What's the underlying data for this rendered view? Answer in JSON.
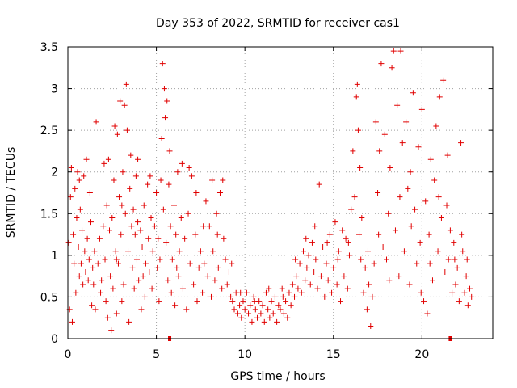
{
  "chart_data": {
    "type": "scatter",
    "title": "Day 353 of 2022, SRMTID for receiver cas1",
    "xlabel": "GPS time / hours",
    "ylabel": "SRMTID / TECUs",
    "xlim": [
      0,
      24
    ],
    "ylim": [
      0,
      3.5
    ],
    "xticks": [
      0,
      5,
      10,
      15,
      20
    ],
    "xtick_labels": [
      "0",
      "5",
      "10",
      "15",
      "20"
    ],
    "yticks": [
      0,
      0.5,
      1,
      1.5,
      2,
      2.5,
      3,
      3.5
    ],
    "ytick_labels": [
      "0",
      "0.5",
      "1",
      "1.5",
      "2",
      "2.5",
      "3",
      "3.5"
    ],
    "grid": true,
    "marker": "+",
    "color": "#e00000",
    "axis_markers_x": [
      5.75,
      21.6
    ],
    "series": [
      {
        "name": "cas1",
        "points": [
          [
            0.05,
            1.15
          ],
          [
            0.1,
            0.35
          ],
          [
            0.15,
            1.7
          ],
          [
            0.2,
            2.05
          ],
          [
            0.25,
            0.2
          ],
          [
            0.3,
            1.25
          ],
          [
            0.35,
            0.9
          ],
          [
            0.4,
            1.8
          ],
          [
            0.45,
            0.55
          ],
          [
            0.5,
            1.45
          ],
          [
            0.55,
            2.0
          ],
          [
            0.6,
            1.1
          ],
          [
            0.65,
            0.75
          ],
          [
            0.7,
            1.55
          ],
          [
            0.75,
            0.9
          ],
          [
            0.8,
            1.3
          ],
          [
            0.85,
            0.65
          ],
          [
            0.9,
            1.95
          ],
          [
            0.95,
            1.05
          ],
          [
            1.0,
            0.8
          ],
          [
            1.05,
            2.15
          ],
          [
            1.1,
            1.2
          ],
          [
            1.15,
            0.7
          ],
          [
            1.2,
            0.95
          ],
          [
            1.3,
            1.4
          ],
          [
            1.35,
            0.4
          ],
          [
            1.4,
            0.85
          ],
          [
            1.5,
            1.05
          ],
          [
            1.55,
            0.35
          ],
          [
            1.6,
            2.6
          ],
          [
            1.7,
            0.9
          ],
          [
            1.8,
            1.2
          ],
          [
            1.85,
            0.55
          ],
          [
            1.9,
            0.7
          ],
          [
            2.0,
            1.35
          ],
          [
            2.05,
            2.1
          ],
          [
            2.1,
            0.95
          ],
          [
            2.2,
            1.6
          ],
          [
            2.25,
            0.25
          ],
          [
            2.3,
            2.15
          ],
          [
            2.35,
            1.3
          ],
          [
            2.4,
            0.75
          ],
          [
            2.45,
            0.1
          ],
          [
            2.5,
            1.45
          ],
          [
            2.55,
            0.6
          ],
          [
            2.6,
            1.9
          ],
          [
            2.65,
            2.55
          ],
          [
            2.7,
            1.05
          ],
          [
            2.75,
            0.3
          ],
          [
            2.8,
            2.45
          ],
          [
            2.85,
            0.9
          ],
          [
            2.9,
            1.7
          ],
          [
            2.95,
            2.85
          ],
          [
            3.0,
            1.25
          ],
          [
            3.05,
            0.45
          ],
          [
            3.1,
            2.0
          ],
          [
            3.15,
            0.65
          ],
          [
            3.2,
            2.8
          ],
          [
            3.25,
            1.5
          ],
          [
            3.3,
            3.05
          ],
          [
            3.35,
            2.5
          ],
          [
            3.4,
            1.05
          ],
          [
            3.45,
            0.2
          ],
          [
            3.5,
            1.8
          ],
          [
            3.55,
            2.2
          ],
          [
            3.6,
            1.35
          ],
          [
            3.65,
            0.85
          ],
          [
            3.7,
            1.55
          ],
          [
            3.75,
            0.6
          ],
          [
            3.8,
            1.25
          ],
          [
            3.85,
            1.95
          ],
          [
            3.9,
            0.95
          ],
          [
            3.95,
            1.4
          ],
          [
            4.0,
            0.7
          ],
          [
            4.1,
            1.3
          ],
          [
            4.15,
            0.35
          ],
          [
            4.2,
            1.1
          ],
          [
            4.3,
            1.6
          ],
          [
            4.35,
            0.5
          ],
          [
            4.4,
            0.9
          ],
          [
            4.5,
            1.85
          ],
          [
            4.55,
            1.2
          ],
          [
            4.6,
            0.8
          ],
          [
            4.7,
            1.45
          ],
          [
            4.75,
            0.6
          ],
          [
            4.8,
            1.05
          ],
          [
            4.9,
            1.35
          ],
          [
            5.0,
            1.75
          ],
          [
            5.05,
            0.85
          ],
          [
            5.1,
            1.2
          ],
          [
            5.15,
            0.45
          ],
          [
            5.2,
            0.95
          ],
          [
            5.3,
            2.4
          ],
          [
            5.35,
            3.3
          ],
          [
            5.4,
            1.55
          ],
          [
            5.45,
            3.0
          ],
          [
            5.5,
            2.65
          ],
          [
            5.55,
            1.15
          ],
          [
            5.6,
            2.85
          ],
          [
            5.65,
            0.7
          ],
          [
            5.7,
            1.85
          ],
          [
            5.75,
            2.25
          ],
          [
            5.8,
            1.35
          ],
          [
            5.85,
            0.55
          ],
          [
            5.9,
            0.95
          ],
          [
            6.0,
            1.6
          ],
          [
            6.05,
            0.4
          ],
          [
            6.1,
            1.25
          ],
          [
            6.2,
            2.0
          ],
          [
            6.25,
            0.75
          ],
          [
            6.3,
            1.05
          ],
          [
            6.4,
            1.45
          ],
          [
            6.45,
            2.1
          ],
          [
            6.5,
            0.6
          ],
          [
            6.6,
            1.2
          ],
          [
            6.7,
            0.35
          ],
          [
            6.8,
            1.5
          ],
          [
            6.9,
            0.9
          ],
          [
            7.0,
            1.95
          ],
          [
            7.1,
            0.65
          ],
          [
            7.2,
            1.25
          ],
          [
            7.3,
            0.45
          ],
          [
            7.4,
            0.85
          ],
          [
            7.5,
            1.05
          ],
          [
            7.6,
            0.55
          ],
          [
            7.7,
            0.9
          ],
          [
            7.8,
            1.65
          ],
          [
            7.9,
            0.75
          ],
          [
            8.0,
            1.35
          ],
          [
            8.1,
            0.5
          ],
          [
            8.2,
            1.05
          ],
          [
            8.3,
            0.7
          ],
          [
            8.4,
            1.5
          ],
          [
            8.5,
            0.85
          ],
          [
            8.6,
            1.75
          ],
          [
            8.7,
            0.6
          ],
          [
            8.75,
            1.9
          ],
          [
            8.8,
            1.2
          ],
          [
            8.9,
            0.95
          ],
          [
            9.0,
            0.65
          ],
          [
            9.1,
            0.8
          ],
          [
            9.2,
            0.5
          ],
          [
            9.3,
            0.45
          ],
          [
            9.4,
            0.35
          ],
          [
            9.5,
            0.55
          ],
          [
            9.6,
            0.3
          ],
          [
            9.7,
            0.4
          ],
          [
            9.8,
            0.25
          ],
          [
            9.9,
            0.45
          ],
          [
            10.0,
            0.35
          ],
          [
            10.1,
            0.55
          ],
          [
            10.2,
            0.3
          ],
          [
            10.3,
            0.4
          ],
          [
            10.4,
            0.2
          ],
          [
            10.5,
            0.5
          ],
          [
            10.6,
            0.35
          ],
          [
            10.7,
            0.25
          ],
          [
            10.8,
            0.45
          ],
          [
            10.9,
            0.3
          ],
          [
            11.0,
            0.4
          ],
          [
            11.1,
            0.2
          ],
          [
            11.2,
            0.55
          ],
          [
            11.3,
            0.35
          ],
          [
            11.4,
            0.25
          ],
          [
            11.5,
            0.45
          ],
          [
            11.6,
            0.3
          ],
          [
            11.7,
            0.5
          ],
          [
            11.8,
            0.2
          ],
          [
            11.9,
            0.4
          ],
          [
            12.0,
            0.35
          ],
          [
            12.1,
            0.6
          ],
          [
            12.2,
            0.3
          ],
          [
            12.3,
            0.45
          ],
          [
            12.4,
            0.25
          ],
          [
            12.5,
            0.55
          ],
          [
            12.6,
            0.4
          ],
          [
            12.7,
            0.65
          ],
          [
            12.8,
            0.5
          ],
          [
            12.9,
            0.75
          ],
          [
            13.0,
            0.6
          ],
          [
            13.1,
            0.9
          ],
          [
            13.2,
            0.55
          ],
          [
            13.3,
            1.05
          ],
          [
            13.4,
            0.7
          ],
          [
            13.5,
            0.85
          ],
          [
            13.6,
            1.0
          ],
          [
            13.7,
            0.65
          ],
          [
            13.8,
            1.15
          ],
          [
            13.9,
            0.8
          ],
          [
            14.0,
            0.95
          ],
          [
            14.1,
            0.6
          ],
          [
            14.2,
            1.85
          ],
          [
            14.3,
            0.75
          ],
          [
            14.4,
            1.1
          ],
          [
            14.5,
            0.5
          ],
          [
            14.6,
            0.9
          ],
          [
            14.7,
            0.7
          ],
          [
            14.8,
            1.25
          ],
          [
            14.9,
            0.55
          ],
          [
            15.0,
            0.85
          ],
          [
            15.1,
            1.4
          ],
          [
            15.2,
            0.65
          ],
          [
            15.3,
            1.05
          ],
          [
            15.4,
            0.45
          ],
          [
            15.5,
            1.3
          ],
          [
            15.6,
            0.75
          ],
          [
            15.7,
            1.2
          ],
          [
            15.8,
            0.6
          ],
          [
            15.9,
            1.0
          ],
          [
            16.0,
            1.55
          ],
          [
            16.1,
            2.25
          ],
          [
            16.2,
            1.7
          ],
          [
            16.3,
            2.9
          ],
          [
            16.35,
            3.05
          ],
          [
            16.4,
            2.5
          ],
          [
            16.45,
            1.25
          ],
          [
            16.5,
            2.05
          ],
          [
            16.6,
            1.45
          ],
          [
            16.7,
            0.55
          ],
          [
            16.8,
            0.85
          ],
          [
            16.9,
            0.35
          ],
          [
            17.0,
            0.65
          ],
          [
            17.1,
            0.15
          ],
          [
            17.2,
            0.5
          ],
          [
            17.3,
            0.9
          ],
          [
            17.4,
            2.6
          ],
          [
            17.5,
            1.75
          ],
          [
            17.6,
            2.25
          ],
          [
            17.7,
            3.3
          ],
          [
            17.8,
            1.1
          ],
          [
            17.9,
            2.45
          ],
          [
            18.0,
            0.95
          ],
          [
            18.1,
            1.5
          ],
          [
            18.2,
            2.05
          ],
          [
            18.3,
            3.25
          ],
          [
            18.4,
            3.45
          ],
          [
            18.5,
            1.3
          ],
          [
            18.6,
            2.8
          ],
          [
            18.7,
            0.75
          ],
          [
            18.8,
            3.45
          ],
          [
            18.9,
            2.35
          ],
          [
            19.0,
            1.05
          ],
          [
            19.1,
            2.6
          ],
          [
            19.2,
            1.8
          ],
          [
            19.3,
            0.65
          ],
          [
            19.4,
            1.35
          ],
          [
            19.5,
            2.95
          ],
          [
            19.6,
            1.55
          ],
          [
            19.7,
            0.9
          ],
          [
            19.8,
            2.3
          ],
          [
            19.9,
            1.15
          ],
          [
            20.0,
            2.75
          ],
          [
            20.1,
            0.45
          ],
          [
            20.2,
            1.65
          ],
          [
            20.3,
            0.3
          ],
          [
            20.4,
            1.25
          ],
          [
            20.5,
            2.15
          ],
          [
            20.6,
            0.7
          ],
          [
            20.7,
            1.9
          ],
          [
            20.8,
            2.55
          ],
          [
            20.9,
            1.05
          ],
          [
            21.0,
            2.9
          ],
          [
            21.1,
            1.45
          ],
          [
            21.2,
            3.1
          ],
          [
            21.3,
            0.8
          ],
          [
            21.4,
            1.6
          ],
          [
            21.5,
            0.95
          ],
          [
            21.6,
            1.3
          ],
          [
            21.7,
            0.55
          ],
          [
            21.8,
            1.15
          ],
          [
            21.9,
            0.65
          ],
          [
            22.0,
            0.85
          ],
          [
            22.1,
            0.45
          ],
          [
            22.2,
            2.35
          ],
          [
            22.3,
            1.05
          ],
          [
            22.4,
            0.55
          ],
          [
            22.5,
            0.75
          ],
          [
            22.6,
            0.4
          ],
          [
            22.7,
            0.6
          ],
          [
            22.8,
            0.5
          ],
          [
            1.25,
            1.75
          ],
          [
            2.15,
            0.45
          ],
          [
            3.05,
            1.6
          ],
          [
            3.95,
            2.15
          ],
          [
            4.65,
            1.95
          ],
          [
            6.15,
            0.85
          ],
          [
            6.85,
            2.05
          ],
          [
            7.25,
            1.75
          ],
          [
            7.65,
            1.35
          ],
          [
            8.45,
            1.25
          ],
          [
            8.15,
            1.9
          ],
          [
            9.25,
            0.9
          ],
          [
            9.75,
            0.55
          ],
          [
            10.55,
            0.45
          ],
          [
            11.35,
            0.6
          ],
          [
            12.15,
            0.5
          ],
          [
            12.85,
            0.95
          ],
          [
            13.45,
            1.2
          ],
          [
            13.95,
            1.35
          ],
          [
            14.65,
            1.15
          ],
          [
            15.25,
            0.95
          ],
          [
            15.85,
            1.15
          ],
          [
            16.55,
            0.95
          ],
          [
            16.95,
            1.05
          ],
          [
            17.55,
            1.25
          ],
          [
            18.15,
            0.7
          ],
          [
            18.75,
            1.7
          ],
          [
            19.35,
            2.0
          ],
          [
            19.95,
            0.55
          ],
          [
            20.45,
            0.9
          ],
          [
            20.95,
            1.7
          ],
          [
            21.45,
            2.2
          ],
          [
            21.85,
            0.95
          ],
          [
            22.25,
            1.25
          ],
          [
            22.55,
            0.95
          ],
          [
            0.65,
            1.9
          ],
          [
            1.45,
            0.65
          ],
          [
            2.75,
            0.95
          ],
          [
            4.25,
            0.75
          ],
          [
            5.25,
            1.9
          ]
        ]
      }
    ]
  }
}
